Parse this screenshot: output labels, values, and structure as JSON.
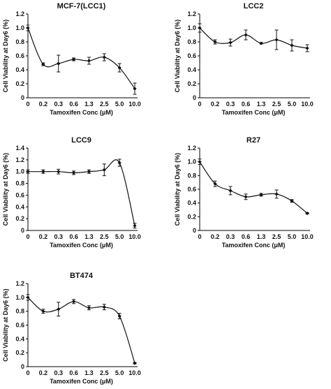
{
  "chart_data": [
    {
      "type": "line",
      "title": "MCF-7(LCC1)",
      "xlabel": "Tamoxifen Conc (μM)",
      "ylabel": "Cell Viability at Day6 (%)",
      "categories": [
        "0",
        "0.2",
        "0.3",
        "0.6",
        "1.3",
        "2.5",
        "5.0",
        "10.0"
      ],
      "ylim": [
        0,
        1.2
      ],
      "yticks": [
        "0",
        "0.2",
        "0.4",
        "0.6",
        "0.8",
        "1.0",
        "1.2"
      ],
      "values": [
        1.0,
        0.48,
        0.49,
        0.55,
        0.53,
        0.58,
        0.43,
        0.13
      ],
      "errors": [
        0.04,
        0.02,
        0.12,
        0.02,
        0.05,
        0.05,
        0.06,
        0.08
      ],
      "grid": false
    },
    {
      "type": "line",
      "title": "LCC2",
      "xlabel": "Tamoxifen Conc (μM)",
      "ylabel": "Cell Viability at Day6 (%)",
      "categories": [
        "0",
        "0.2",
        "0.3",
        "0.6",
        "1.3",
        "2.5",
        "5.0",
        "10.0"
      ],
      "ylim": [
        0,
        1.2
      ],
      "yticks": [
        "0",
        "0.2",
        "0.4",
        "0.6",
        "0.8",
        "1.0",
        "1.2"
      ],
      "values": [
        1.0,
        0.8,
        0.79,
        0.9,
        0.78,
        0.83,
        0.75,
        0.71
      ],
      "errors": [
        0.06,
        0.03,
        0.05,
        0.07,
        0.01,
        0.14,
        0.08,
        0.05
      ],
      "grid": false
    },
    {
      "type": "line",
      "title": "LCC9",
      "xlabel": "Tamoxifen Conc (μM)",
      "ylabel": "Cell Viability at Day6 (%)",
      "categories": [
        "0",
        "0.2",
        "0.3",
        "0.6",
        "1.3",
        "2.5",
        "5.0",
        "10.0"
      ],
      "ylim": [
        0,
        1.4
      ],
      "yticks": [
        "0",
        "0.2",
        "0.4",
        "0.6",
        "0.8",
        "1.0",
        "1.2",
        "1.4"
      ],
      "values": [
        1.0,
        1.0,
        1.0,
        0.98,
        1.0,
        1.03,
        1.15,
        0.08
      ],
      "errors": [
        0.03,
        0.03,
        0.04,
        0.03,
        0.03,
        0.1,
        0.06,
        0.04
      ],
      "grid": false
    },
    {
      "type": "line",
      "title": "R27",
      "xlabel": "Tamoxifen Conc (μM)",
      "ylabel": "Cell Viability at Day6 (%)",
      "categories": [
        "0",
        "0.2",
        "0.3",
        "0.6",
        "1.3",
        "2.5",
        "5.0",
        "10.0"
      ],
      "ylim": [
        0,
        1.2
      ],
      "yticks": [
        "0",
        "0.2",
        "0.4",
        "0.6",
        "0.8",
        "1.0",
        "1.2"
      ],
      "values": [
        1.0,
        0.68,
        0.58,
        0.49,
        0.52,
        0.53,
        0.43,
        0.25
      ],
      "errors": [
        0.04,
        0.04,
        0.06,
        0.04,
        0.02,
        0.06,
        0.02,
        0.01
      ],
      "grid": false
    },
    {
      "type": "line",
      "title": "BT474",
      "xlabel": "Tamoxifen Conc (μM)",
      "ylabel": "Cell Viability at Day6 (%)",
      "categories": [
        "0",
        "0.2",
        "0.3",
        "0.6",
        "1.3",
        "2.5",
        "5.0",
        "10.0"
      ],
      "ylim": [
        0,
        1.2
      ],
      "yticks": [
        "0",
        "0.2",
        "0.4",
        "0.6",
        "0.8",
        "1.0",
        "1.2"
      ],
      "values": [
        1.0,
        0.8,
        0.83,
        0.94,
        0.85,
        0.86,
        0.73,
        0.05
      ],
      "errors": [
        0.04,
        0.03,
        0.1,
        0.03,
        0.03,
        0.04,
        0.04,
        0.01
      ],
      "grid": false
    }
  ]
}
